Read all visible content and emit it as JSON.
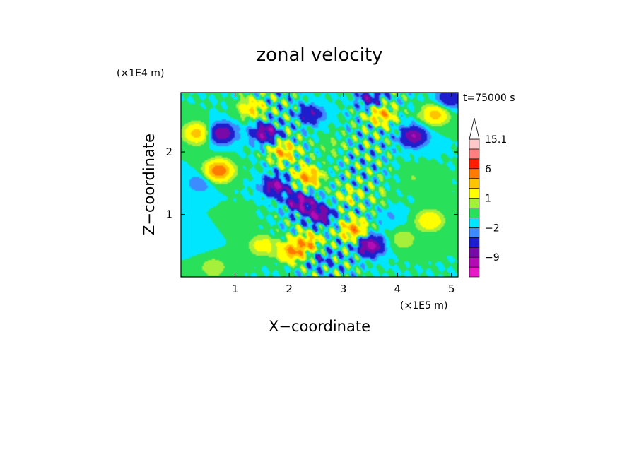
{
  "chart_data": {
    "type": "heatmap",
    "title": "zonal velocity",
    "xlabel": "X−coordinate",
    "ylabel": "Z−coordinate",
    "x_unit": "(×1E5 m)",
    "y_unit": "(×1E4 m)",
    "time_label": "t=75000 s",
    "xlim": [
      0,
      5.12
    ],
    "ylim": [
      0,
      2.95
    ],
    "x_ticks": [
      1,
      2,
      3,
      4,
      5
    ],
    "x_tick_labels": [
      "1",
      "2",
      "3",
      "4",
      "5"
    ],
    "y_ticks": [
      1,
      2
    ],
    "y_tick_labels": [
      "1",
      "2"
    ],
    "colorbar": {
      "levels_low_to_high": [
        -12,
        -9,
        -6,
        -4,
        -2,
        -1,
        0,
        1,
        2,
        4,
        6,
        8.7,
        11.4,
        15.1
      ],
      "colors_low_to_high": [
        "#e618c8",
        "#b40cb4",
        "#7a0aa8",
        "#1e1ecc",
        "#3c8cff",
        "#00e6ff",
        "#29e05a",
        "#a6ef3a",
        "#ffff00",
        "#ffc400",
        "#ff7a00",
        "#ff1e00",
        "#ff8080",
        "#ffc8c8"
      ],
      "labels": [
        {
          "value": 15.1,
          "text": "15.1"
        },
        {
          "value": 6,
          "text": "6"
        },
        {
          "value": 1,
          "text": "1"
        },
        {
          "value": -2,
          "text": "−2"
        },
        {
          "value": -9,
          "text": "−9"
        }
      ],
      "extend": "max"
    },
    "features": [
      {
        "x": 0.7,
        "z": 1.7,
        "u": 8
      },
      {
        "x": 0.3,
        "z": 2.3,
        "u": 5
      },
      {
        "x": 0.75,
        "z": 2.3,
        "u": -6
      },
      {
        "x": 0.35,
        "z": 1.5,
        "u": -2
      },
      {
        "x": 0.3,
        "z": 0.6,
        "u": -1
      },
      {
        "x": 0.6,
        "z": 0.15,
        "u": 2
      },
      {
        "x": 1.1,
        "z": 0.9,
        "u": 1
      },
      {
        "x": 1.3,
        "z": 2.7,
        "u": 4
      },
      {
        "x": 1.55,
        "z": 2.3,
        "u": -6
      },
      {
        "x": 1.9,
        "z": 2.0,
        "u": 5
      },
      {
        "x": 1.75,
        "z": 1.45,
        "u": -6
      },
      {
        "x": 2.2,
        "z": 1.2,
        "u": -6
      },
      {
        "x": 2.55,
        "z": 1.0,
        "u": -6
      },
      {
        "x": 2.35,
        "z": 1.6,
        "u": 6
      },
      {
        "x": 1.5,
        "z": 0.5,
        "u": 3
      },
      {
        "x": 2.05,
        "z": 0.4,
        "u": 6
      },
      {
        "x": 2.35,
        "z": 0.55,
        "u": 5
      },
      {
        "x": 2.6,
        "z": 0.3,
        "u": -2
      },
      {
        "x": 2.4,
        "z": 2.6,
        "u": -4
      },
      {
        "x": 2.8,
        "z": 2.1,
        "u": 1
      },
      {
        "x": 3.5,
        "z": 0.5,
        "u": -7
      },
      {
        "x": 3.2,
        "z": 0.75,
        "u": 6
      },
      {
        "x": 3.1,
        "z": 1.3,
        "u": 2
      },
      {
        "x": 3.7,
        "z": 1.3,
        "u": 1
      },
      {
        "x": 3.7,
        "z": 2.6,
        "u": 5
      },
      {
        "x": 3.5,
        "z": 2.85,
        "u": -4
      },
      {
        "x": 4.3,
        "z": 2.25,
        "u": -6
      },
      {
        "x": 4.7,
        "z": 2.6,
        "u": 5
      },
      {
        "x": 4.95,
        "z": 2.85,
        "u": -4
      },
      {
        "x": 4.3,
        "z": 1.6,
        "u": 1
      },
      {
        "x": 4.6,
        "z": 0.9,
        "u": 4
      },
      {
        "x": 4.1,
        "z": 0.6,
        "u": 2
      },
      {
        "x": 4.3,
        "z": 0.15,
        "u": 0
      },
      {
        "x": 3.9,
        "z": 0.95,
        "u": -1
      }
    ]
  }
}
